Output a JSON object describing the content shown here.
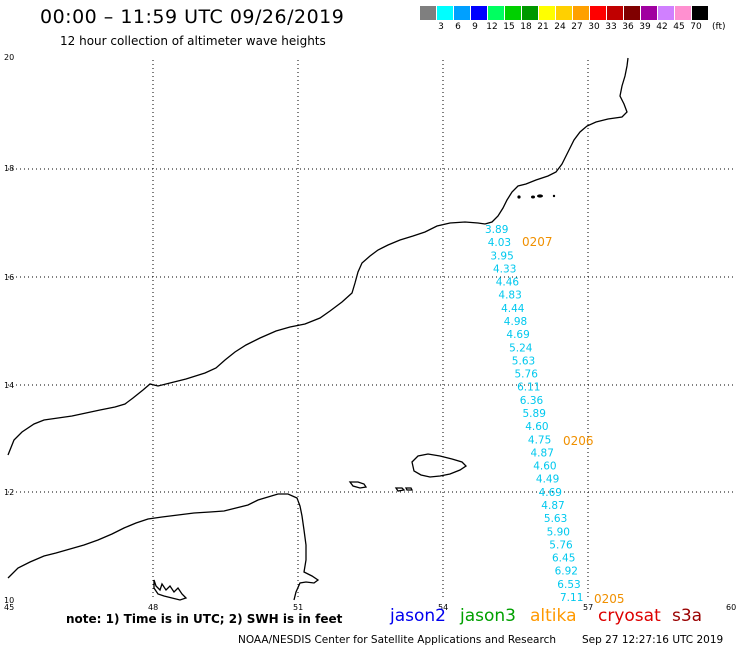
{
  "header": {
    "title": "00:00 – 11:59 UTC 09/26/2019",
    "subtitle": "12 hour collection of altimeter wave heights"
  },
  "colorbar": {
    "unit": "(ft)",
    "swatches": [
      {
        "color": "#7f7f7f",
        "label": "3"
      },
      {
        "color": "#00ffff",
        "label": "6"
      },
      {
        "color": "#00a0ff",
        "label": "9"
      },
      {
        "color": "#0000ff",
        "label": "12"
      },
      {
        "color": "#00ff60",
        "label": "15"
      },
      {
        "color": "#00d000",
        "label": "18"
      },
      {
        "color": "#009800",
        "label": "21"
      },
      {
        "color": "#ffff00",
        "label": "24"
      },
      {
        "color": "#ffd000",
        "label": "27"
      },
      {
        "color": "#ffa000",
        "label": "30"
      },
      {
        "color": "#ff0000",
        "label": "33"
      },
      {
        "color": "#c00000",
        "label": "36"
      },
      {
        "color": "#800000",
        "label": "39"
      },
      {
        "color": "#a000a0",
        "label": "42"
      },
      {
        "color": "#d080ff",
        "label": "45"
      },
      {
        "color": "#ff90d0",
        "label": "70"
      },
      {
        "color": "#000000",
        "label": ""
      }
    ]
  },
  "axes": {
    "lat_labels": [
      "20",
      "18",
      "16",
      "14",
      "12",
      "10"
    ],
    "lon_labels": [
      "45",
      "48",
      "51",
      "54",
      "57",
      "60"
    ]
  },
  "swh_readings": [
    "3.89",
    "4.03",
    "3.95",
    "4.33",
    "4.46",
    "4.83",
    "4.44",
    "4.98",
    "4.69",
    "5.24",
    "5.63",
    "5.76",
    "6.11",
    "6.36",
    "5.89",
    "4.60",
    "4.75",
    "4.87",
    "4.60",
    "4.49",
    "4.69",
    "4.87",
    "5.63",
    "5.90",
    "5.76",
    "6.45",
    "6.92",
    "6.53",
    "7.11"
  ],
  "pass_times": [
    "0207",
    "0206",
    "0205"
  ],
  "footer": {
    "note": "note: 1) Time is in UTC; 2) SWH is in feet",
    "legend": [
      {
        "name": "jason2",
        "color": "#0000ee"
      },
      {
        "name": "jason3",
        "color": "#00a000"
      },
      {
        "name": "altika",
        "color": "#ff9900"
      },
      {
        "name": "cryosat",
        "color": "#dd0000"
      },
      {
        "name": "s3a",
        "color": "#990000"
      }
    ],
    "credit": "NOAA/NESDIS Center for Satellite Applications and Research",
    "timestamp": "Sep 27 12:27:16 UTC 2019"
  }
}
